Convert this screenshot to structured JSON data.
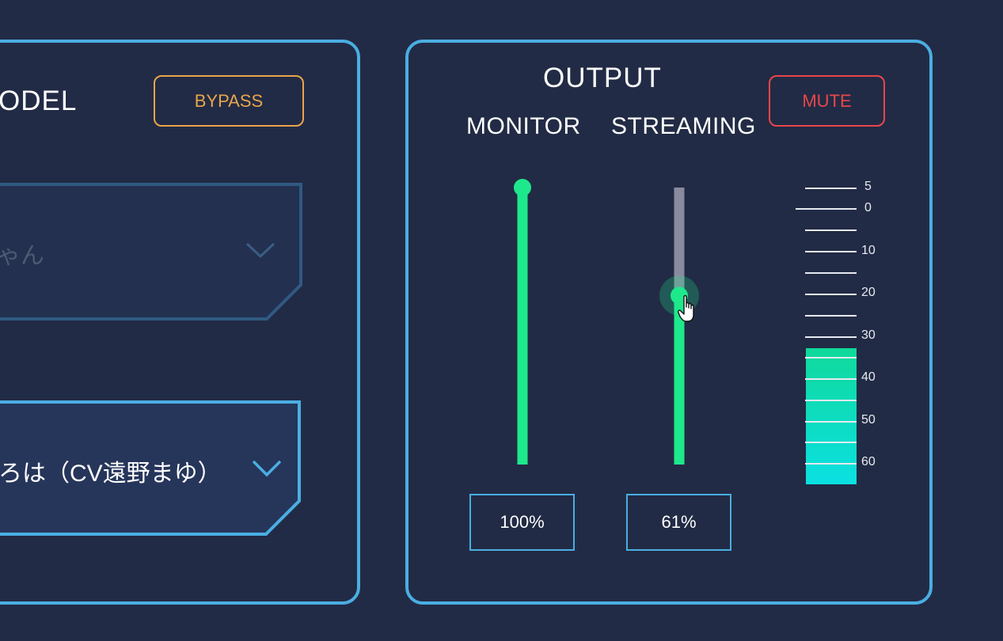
{
  "model": {
    "title": "ODEL",
    "bypass_label": "BYPASS",
    "character_select": {
      "value": "ゃん"
    },
    "voice_select": {
      "value": "ろは（CV遠野まゆ）"
    }
  },
  "output": {
    "title": "OUTPUT",
    "mute_label": "MUTE",
    "monitor": {
      "label": "MONITOR",
      "value_text": "100%",
      "level": 1.0
    },
    "streaming": {
      "label": "STREAMING",
      "value_text": "61%",
      "level": 0.61
    },
    "meter": {
      "scale_labels": [
        "5",
        "0",
        "10",
        "20",
        "30",
        "40",
        "50",
        "60"
      ],
      "fill_level": 0.46,
      "colors": {
        "top": "#10d99b",
        "bottom": "#0be0e2"
      }
    }
  },
  "colors": {
    "panel_border": "#4aaee2",
    "background": "#222b45",
    "slider_active": "#1ee88c",
    "slider_inactive": "#8a8a9e",
    "bypass": "#e8a54b",
    "mute": "#e9464a"
  }
}
